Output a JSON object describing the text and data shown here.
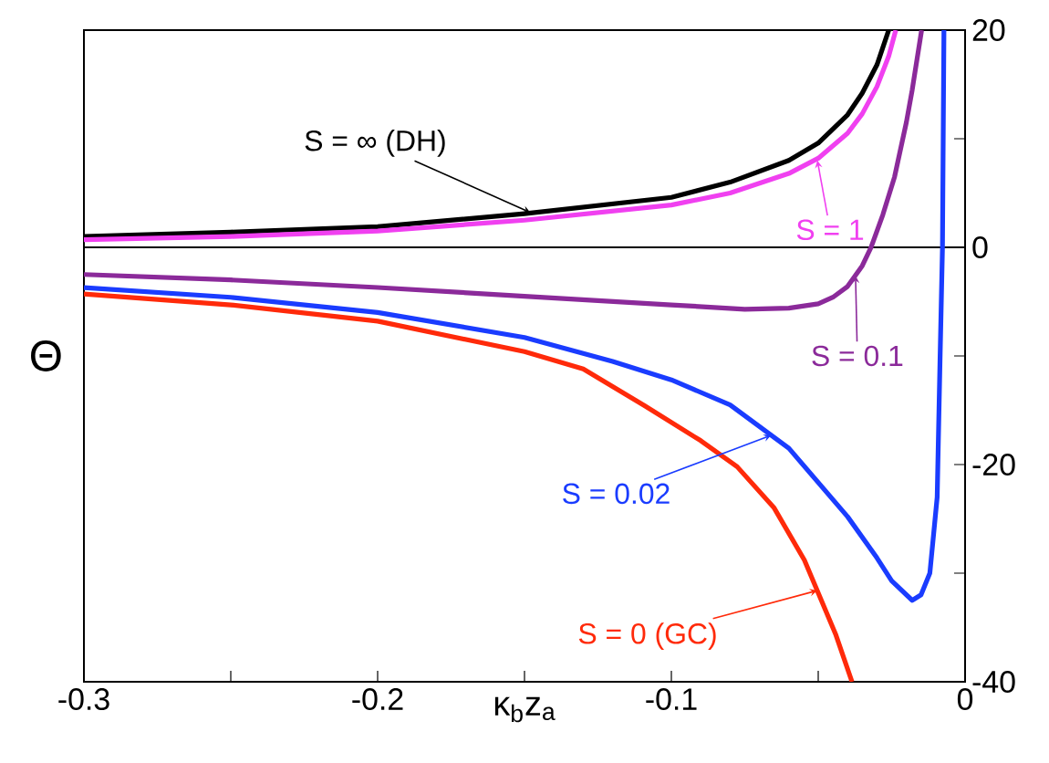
{
  "chart_data": {
    "type": "line",
    "xlabel": "κ$_{b}$z$_{a}$",
    "ylabel": "Θ",
    "xlim": [
      -0.3,
      0
    ],
    "ylim": [
      -40,
      20
    ],
    "xticks": [
      -0.3,
      {
        "value": -0.25,
        "label": null
      },
      -0.2,
      {
        "value": -0.15,
        "label": null
      },
      -0.1,
      {
        "value": -0.05,
        "label": null
      },
      0
    ],
    "yticks": [
      -40,
      {
        "value": -30,
        "label": null
      },
      -20,
      {
        "value": -10,
        "label": null
      },
      0,
      {
        "value": 10,
        "label": null
      },
      20
    ],
    "grid": false,
    "marker": "none",
    "line_style": "solid",
    "ref_lines": [
      {
        "axis": "y",
        "value": 0,
        "color": "#000000"
      }
    ],
    "series": [
      {
        "color": "#000000",
        "x": [
          -0.3,
          -0.25,
          -0.2,
          -0.15,
          -0.1,
          -0.08,
          -0.06,
          -0.05,
          -0.04,
          -0.035,
          -0.03,
          -0.026
        ],
        "values": [
          1.0,
          1.4,
          1.9,
          3.1,
          4.6,
          6.0,
          8.0,
          9.6,
          12.2,
          14.2,
          16.8,
          20
        ]
      },
      {
        "color": "#f040f0",
        "x": [
          -0.3,
          -0.25,
          -0.2,
          -0.15,
          -0.1,
          -0.08,
          -0.06,
          -0.05,
          -0.04,
          -0.035,
          -0.03,
          -0.026,
          -0.0236
        ],
        "values": [
          0.7,
          1.0,
          1.5,
          2.5,
          3.9,
          5.0,
          6.8,
          8.2,
          10.5,
          12.3,
          14.8,
          17.6,
          20
        ]
      },
      {
        "color": "#8b2a9a",
        "x": [
          -0.3,
          -0.25,
          -0.2,
          -0.15,
          -0.1,
          -0.075,
          -0.06,
          -0.05,
          -0.045,
          -0.04,
          -0.035,
          -0.032,
          -0.028,
          -0.024,
          -0.02,
          -0.018,
          -0.0148
        ],
        "values": [
          -2.5,
          -3.0,
          -3.7,
          -4.5,
          -5.3,
          -5.7,
          -5.6,
          -5.2,
          -4.6,
          -3.6,
          -1.7,
          0,
          3.0,
          6.5,
          11.5,
          14.5,
          20
        ]
      },
      {
        "color": "#1a3cff",
        "x": [
          -0.3,
          -0.25,
          -0.2,
          -0.15,
          -0.12,
          -0.1,
          -0.08,
          -0.06,
          -0.04,
          -0.03,
          -0.025,
          -0.018,
          -0.015,
          -0.012,
          -0.0095,
          -0.0085,
          -0.0077,
          -0.0072
        ],
        "values": [
          -3.7,
          -4.6,
          -6.0,
          -8.3,
          -10.5,
          -12.2,
          -14.5,
          -18.5,
          -24.8,
          -28.6,
          -30.7,
          -32.5,
          -32,
          -30,
          -23,
          -10,
          0,
          20
        ]
      },
      {
        "color": "#ff2a0a",
        "x": [
          -0.3,
          -0.25,
          -0.2,
          -0.15,
          -0.13,
          -0.109,
          -0.09,
          -0.0776,
          -0.065,
          -0.0547,
          -0.0441,
          -0.0385
        ],
        "values": [
          -4.3,
          -5.3,
          -6.8,
          -9.6,
          -11.2,
          -14.6,
          -17.8,
          -20.2,
          -24.0,
          -28.8,
          -35.6,
          -40
        ]
      }
    ],
    "annotations": [
      {
        "text": "S = ∞ (DH)",
        "x": -0.148,
        "y": 3.2
      },
      {
        "text": "S = 1",
        "x": -0.0503,
        "y": 8.0
      },
      {
        "text": "S = 0.1",
        "x": -0.0373,
        "y": -2.6
      },
      {
        "text": "S = 0.02",
        "x": -0.066,
        "y": -17.3
      },
      {
        "text": "S = 0 (GC)",
        "x": -0.0503,
        "y": -31.6
      }
    ]
  }
}
